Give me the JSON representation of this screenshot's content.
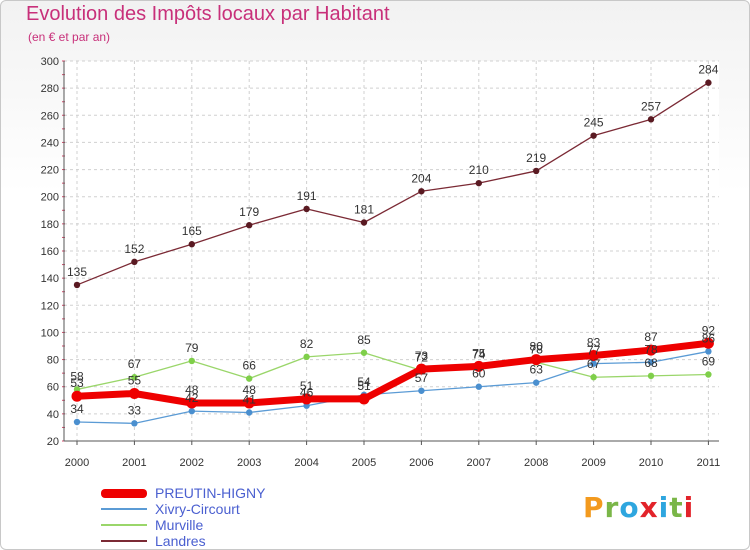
{
  "chart_data": {
    "type": "line",
    "title": "Evolution des Impôts locaux par Habitant",
    "subtitle": "(en € et par an)",
    "categories": [
      "2000",
      "2001",
      "2002",
      "2003",
      "2004",
      "2005",
      "2006",
      "2007",
      "2008",
      "2009",
      "2010",
      "2011"
    ],
    "ylim": [
      20,
      300
    ],
    "yticks": [
      20,
      40,
      60,
      80,
      100,
      120,
      140,
      160,
      180,
      200,
      220,
      240,
      260,
      280,
      300
    ],
    "grid": true,
    "series": [
      {
        "name": "Landres",
        "color": "#7b2a35",
        "values": [
          135,
          152,
          165,
          179,
          191,
          181,
          204,
          210,
          219,
          245,
          257,
          284
        ]
      },
      {
        "name": "Murville",
        "color": "#9ad66a",
        "values": [
          58,
          67,
          79,
          66,
          82,
          85,
          72,
          74,
          78,
          67,
          68,
          69
        ]
      },
      {
        "name": "Xivry-Circourt",
        "color": "#5b9bd5",
        "values": [
          34,
          33,
          42,
          41,
          46,
          54,
          57,
          60,
          63,
          77,
          78,
          86
        ]
      },
      {
        "name": "PREUTIN-HIGNY",
        "color": "#ee0000",
        "values": [
          53,
          55,
          48,
          48,
          51,
          51,
          73,
          75,
          80,
          83,
          87,
          92
        ]
      }
    ],
    "legend": [
      "PREUTIN-HIGNY",
      "Xivry-Circourt",
      "Murville",
      "Landres"
    ],
    "legend_colors": [
      "#ee0000",
      "#5b9bd5",
      "#9ad66a",
      "#7b2a35"
    ]
  },
  "logo": {
    "text": "Proxiti",
    "colors": [
      "#f39a1e",
      "#7ab648",
      "#2ea6df",
      "#e2232a",
      "#2ea6df",
      "#7ab648",
      "#e2232a"
    ]
  }
}
